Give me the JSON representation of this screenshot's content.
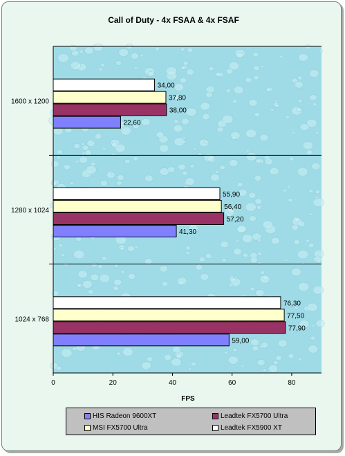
{
  "chart_data": {
    "type": "bar",
    "orientation": "horizontal",
    "title": "Call of Duty - 4x FSAA & 4x FSAF",
    "xlabel": "FPS",
    "ylabel": "",
    "xlim": [
      0,
      90
    ],
    "xticks": [
      0,
      20,
      40,
      60,
      80
    ],
    "grid": false,
    "legend_position": "bottom",
    "categories": [
      "1600 x 1200",
      "1280 x 1024",
      "1024 x 768"
    ],
    "series": [
      {
        "name": "HIS Radeon 9600XT",
        "color": "#8080ff",
        "values": [
          22.6,
          41.3,
          59.0
        ],
        "labels": [
          "22,60",
          "41,30",
          "59,00"
        ]
      },
      {
        "name": "Leadtek FX5700 Ultra",
        "color": "#993366",
        "values": [
          38.0,
          57.2,
          77.9
        ],
        "labels": [
          "38,00",
          "57,20",
          "77,90"
        ]
      },
      {
        "name": "MSI FX5700 Ultra",
        "color": "#ffffcc",
        "values": [
          37.8,
          56.4,
          77.5
        ],
        "labels": [
          "37,80",
          "56,40",
          "77,50"
        ]
      },
      {
        "name": "Leadtek FX5900 XT",
        "color": "#ffffff",
        "values": [
          34.0,
          55.9,
          76.3
        ],
        "labels": [
          "34,00",
          "55,90",
          "76,30"
        ]
      }
    ]
  },
  "colors": {
    "frame_bg": "#e9f7ef",
    "plot_bg": "#9fdbe6",
    "legend_bg": "#c0c0c0"
  }
}
